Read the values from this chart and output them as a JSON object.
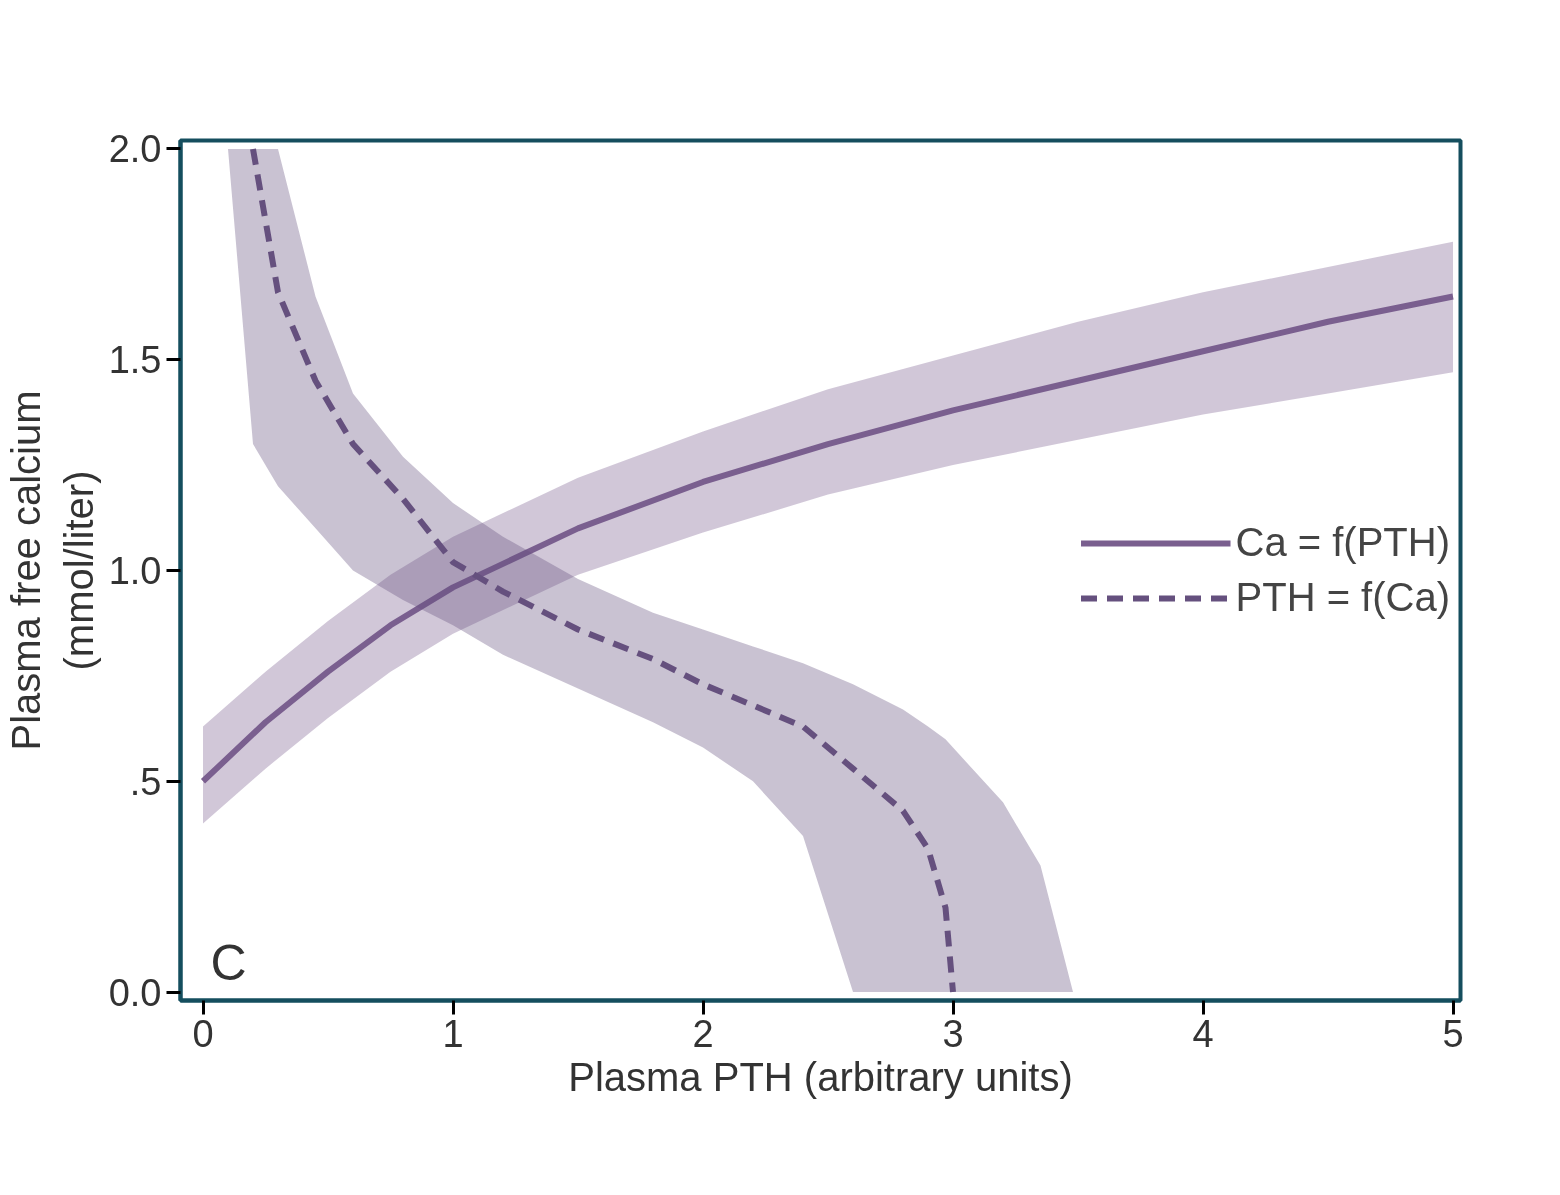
{
  "chart_data": {
    "type": "line",
    "xlabel": "Plasma PTH (arbitrary units)",
    "ylabel": "Plasma free calcium\n(mmol/liter)",
    "annotations": [
      "C"
    ],
    "xlim": [
      -0.09,
      5.03
    ],
    "ylim": [
      -0.02,
      2.02
    ],
    "xticks": [
      0,
      1,
      2,
      3,
      4,
      5
    ],
    "yticks": [
      {
        "value": 0,
        "label": "0.0"
      },
      {
        "value": 0.5,
        "label": ".5"
      },
      {
        "value": 1,
        "label": "1.0"
      },
      {
        "value": 1.5,
        "label": "1.5"
      },
      {
        "value": 2,
        "label": "2.0"
      }
    ],
    "grid": false,
    "legend": "right",
    "series": [
      {
        "name": "Ca = f(PTH)",
        "color": "#7a5f8f",
        "line_style": "solid",
        "x": [
          0,
          0.25,
          0.5,
          0.75,
          1,
          1.5,
          2,
          2.5,
          3,
          3.5,
          4,
          4.5,
          5
        ],
        "values": [
          0.5,
          0.64,
          0.76,
          0.87,
          0.96,
          1.1,
          1.21,
          1.3,
          1.38,
          1.45,
          1.52,
          1.59,
          1.65
        ],
        "lower": [
          0.4,
          0.53,
          0.65,
          0.76,
          0.85,
          0.99,
          1.09,
          1.18,
          1.25,
          1.31,
          1.37,
          1.42,
          1.47
        ],
        "upper": [
          0.63,
          0.76,
          0.88,
          0.99,
          1.08,
          1.22,
          1.33,
          1.43,
          1.51,
          1.59,
          1.66,
          1.72,
          1.78
        ]
      },
      {
        "name": "PTH = f(Ca)",
        "color": "#65507e",
        "line_style": "dashed",
        "x": [
          0.1,
          0.2,
          0.3,
          0.45,
          0.6,
          0.8,
          1.0,
          1.2,
          1.5,
          1.8,
          2.0,
          2.2,
          2.4,
          2.6,
          2.8,
          2.9,
          2.97,
          3.0,
          3.2,
          3.35,
          3.48
        ],
        "values": [
          null,
          2.0,
          1.66,
          1.45,
          1.3,
          1.17,
          1.02,
          0.95,
          0.86,
          0.79,
          0.73,
          0.68,
          0.63,
          0.53,
          0.43,
          0.34,
          0.2,
          0.0,
          null,
          null,
          null
        ],
        "lower": [
          2.0,
          1.3,
          1.2,
          1.1,
          1.0,
          0.93,
          0.87,
          0.8,
          0.72,
          0.64,
          0.58,
          0.5,
          0.37,
          0,
          0,
          0,
          0,
          0,
          0,
          0,
          0
        ],
        "upper": [
          2.0,
          2.0,
          2.0,
          1.65,
          1.42,
          1.27,
          1.16,
          1.08,
          0.98,
          0.9,
          0.86,
          0.82,
          0.78,
          0.73,
          0.67,
          0.63,
          0.6,
          0.58,
          0.45,
          0.3,
          0.0
        ]
      }
    ]
  }
}
